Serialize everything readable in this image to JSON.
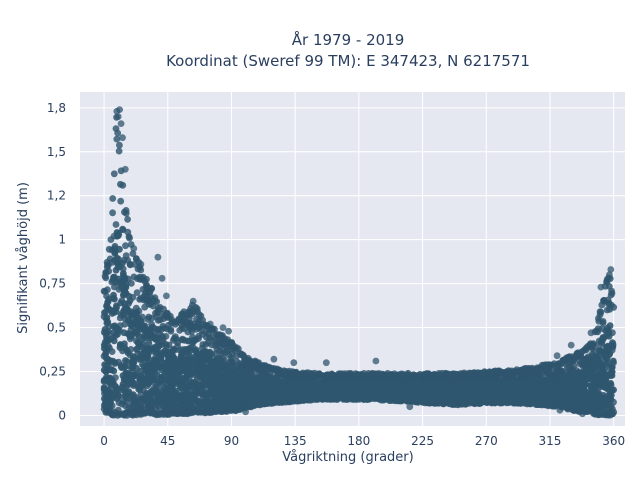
{
  "chart_data": {
    "type": "scatter",
    "title_line1": "År 1979 - 2019",
    "title_line2": "Koordinat (Sweref 99 TM): E 347423, N 6217571",
    "xlabel": "Vågriktning (grader)",
    "ylabel": "Signifikant våghöjd (m)",
    "xlim": [
      -17,
      368
    ],
    "ylim": [
      -0.06,
      1.84
    ],
    "x_ticks": [
      0,
      45,
      90,
      135,
      180,
      225,
      270,
      315,
      360
    ],
    "x_tick_labels": [
      "0",
      "45",
      "90",
      "135",
      "180",
      "225",
      "270",
      "315",
      "360"
    ],
    "y_ticks": [
      0,
      0.25,
      0.5,
      0.75,
      1,
      1.25,
      1.5,
      1.75
    ],
    "y_tick_labels": [
      "0",
      "0,25",
      "0,5",
      "0,75",
      "1",
      "1,2",
      "1,5",
      "1,8"
    ],
    "grid": true,
    "legend": "none",
    "marker_color": "#2f566e",
    "plot_bg": "#e5e8f1",
    "envelope": {
      "direction": [
        0,
        5,
        9,
        11,
        14,
        20,
        30,
        40,
        50,
        60,
        65,
        70,
        80,
        90,
        100,
        110,
        120,
        135,
        150,
        170,
        190,
        210,
        230,
        250,
        270,
        290,
        305,
        320,
        330,
        340,
        345,
        350,
        354,
        357,
        360
      ],
      "hs_max": [
        0.75,
        1.05,
        1.74,
        1.55,
        1.25,
        0.95,
        0.78,
        0.62,
        0.55,
        0.62,
        0.64,
        0.55,
        0.48,
        0.42,
        0.34,
        0.3,
        0.27,
        0.25,
        0.24,
        0.24,
        0.24,
        0.24,
        0.24,
        0.24,
        0.25,
        0.26,
        0.28,
        0.3,
        0.34,
        0.38,
        0.42,
        0.58,
        0.75,
        0.82,
        0.62
      ],
      "hs_min": [
        0.02,
        0.0,
        0.0,
        0.0,
        0.0,
        0.0,
        0.01,
        0.0,
        0.01,
        0.01,
        0.02,
        0.01,
        0.02,
        0.02,
        0.04,
        0.06,
        0.07,
        0.08,
        0.09,
        0.09,
        0.09,
        0.08,
        0.07,
        0.06,
        0.07,
        0.07,
        0.06,
        0.05,
        0.03,
        0.02,
        0.01,
        0.0,
        0.0,
        0.0,
        0.01
      ]
    },
    "outliers": [
      {
        "x": 11,
        "y": 1.74
      },
      {
        "x": 9,
        "y": 1.73
      },
      {
        "x": 12,
        "y": 1.66
      },
      {
        "x": 10,
        "y": 1.7
      },
      {
        "x": 13,
        "y": 1.58
      },
      {
        "x": 15,
        "y": 1.4
      },
      {
        "x": 7,
        "y": 1.02
      },
      {
        "x": 21,
        "y": 0.95
      },
      {
        "x": 38,
        "y": 0.9
      },
      {
        "x": 26,
        "y": 0.86
      },
      {
        "x": 41,
        "y": 0.78
      },
      {
        "x": 32,
        "y": 0.7
      },
      {
        "x": 44,
        "y": 0.68
      },
      {
        "x": 63,
        "y": 0.65
      },
      {
        "x": 84,
        "y": 0.5
      },
      {
        "x": 88,
        "y": 0.48
      },
      {
        "x": 75,
        "y": 0.52
      },
      {
        "x": 120,
        "y": 0.32
      },
      {
        "x": 134,
        "y": 0.3
      },
      {
        "x": 157,
        "y": 0.3
      },
      {
        "x": 192,
        "y": 0.31
      },
      {
        "x": 320,
        "y": 0.34
      },
      {
        "x": 330,
        "y": 0.4
      },
      {
        "x": 344,
        "y": 0.47
      },
      {
        "x": 351,
        "y": 0.73
      },
      {
        "x": 355,
        "y": 0.76
      },
      {
        "x": 357,
        "y": 0.8
      },
      {
        "x": 358,
        "y": 0.83
      },
      {
        "x": 353,
        "y": 0.65
      },
      {
        "x": 322,
        "y": 0.03
      },
      {
        "x": 336,
        "y": 0.02
      },
      {
        "x": 338,
        "y": 0.01
      },
      {
        "x": 250,
        "y": 0.06
      },
      {
        "x": 216,
        "y": 0.05
      },
      {
        "x": 100,
        "y": 0.02
      }
    ]
  }
}
